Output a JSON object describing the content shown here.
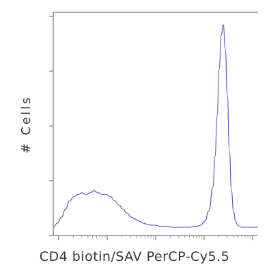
{
  "chart_data": {
    "type": "line",
    "title": "",
    "xlabel": "CD4 biotin/SAV PerCP-Cy5.5",
    "ylabel": "# Cells",
    "x_scale": "log",
    "xlim": [
      0,
      1
    ],
    "ylim": [
      0,
      1
    ],
    "grid": false,
    "legend": "none",
    "colors": {
      "series": "#4a4fb8",
      "axis": "#555555",
      "text": "#333333"
    },
    "series": [
      {
        "x": [
          0.0,
          0.02,
          0.04,
          0.06,
          0.08,
          0.1,
          0.12,
          0.14,
          0.16,
          0.18,
          0.2,
          0.22,
          0.24,
          0.26,
          0.28,
          0.3,
          0.32,
          0.34,
          0.36,
          0.38,
          0.4,
          0.42,
          0.44,
          0.46,
          0.48,
          0.5,
          0.52,
          0.54,
          0.56,
          0.58,
          0.6,
          0.62,
          0.64,
          0.66,
          0.68,
          0.7,
          0.72,
          0.74,
          0.76,
          0.78,
          0.79,
          0.8,
          0.81,
          0.82,
          0.83,
          0.84,
          0.85,
          0.86,
          0.87,
          0.88,
          0.89,
          0.9,
          0.91,
          0.92,
          0.94,
          0.96,
          0.98,
          1.0
        ],
        "y": [
          0.0,
          0.02,
          0.05,
          0.09,
          0.13,
          0.15,
          0.16,
          0.17,
          0.16,
          0.17,
          0.18,
          0.17,
          0.16,
          0.16,
          0.15,
          0.13,
          0.11,
          0.09,
          0.07,
          0.05,
          0.04,
          0.03,
          0.02,
          0.015,
          0.01,
          0.01,
          0.005,
          0.005,
          0.003,
          0.0,
          0.0,
          0.0,
          0.0,
          0.0,
          0.002,
          0.005,
          0.01,
          0.03,
          0.08,
          0.2,
          0.35,
          0.55,
          0.78,
          0.95,
          1.0,
          0.88,
          0.65,
          0.38,
          0.18,
          0.08,
          0.03,
          0.01,
          0.005,
          0.0,
          0.0,
          0.0,
          0.0,
          0.0
        ]
      }
    ]
  }
}
